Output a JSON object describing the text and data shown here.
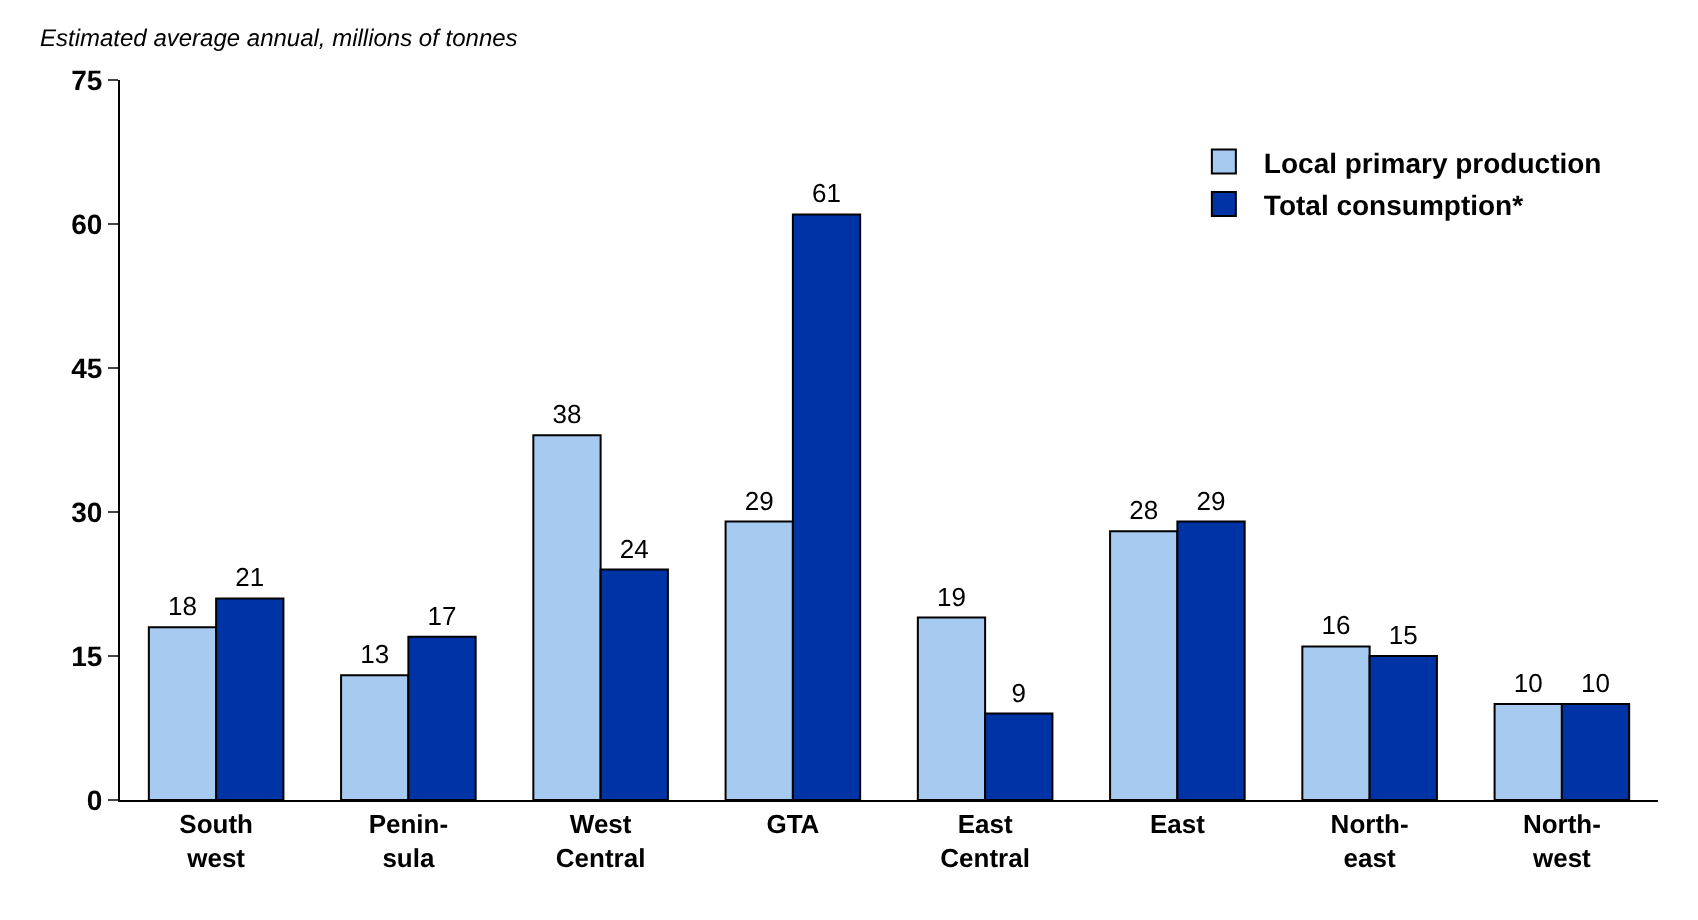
{
  "chart_data": {
    "type": "bar",
    "ylabel": "Estimated average annual, millions of tonnes",
    "categories": [
      "South\nwest",
      "Penin-\nsula",
      "West\nCentral",
      "GTA",
      "East\nCentral",
      "East",
      "North-\neast",
      "North-\nwest"
    ],
    "series": [
      {
        "name": "Local primary production",
        "color": "#a6caf0",
        "values": [
          18,
          13,
          38,
          29,
          19,
          28,
          16,
          10
        ]
      },
      {
        "name": "Total consumption*",
        "color": "#0033a6",
        "values": [
          21,
          17,
          24,
          61,
          9,
          29,
          15,
          10
        ]
      }
    ],
    "ylim": [
      0,
      75
    ],
    "yticks": [
      0,
      15,
      30,
      45,
      60,
      75
    ],
    "legend": "top right",
    "data_labels": true
  }
}
